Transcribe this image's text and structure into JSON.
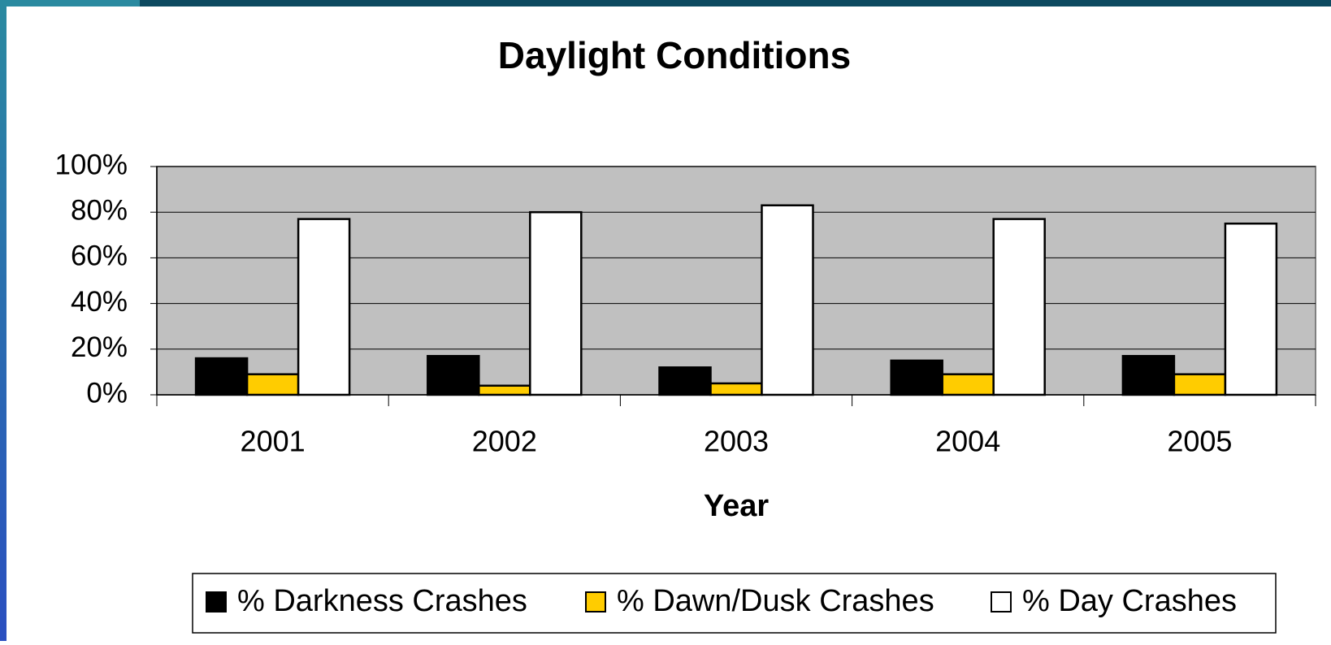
{
  "chart_data": {
    "type": "bar",
    "title": "Daylight Conditions",
    "x_label": "Year",
    "categories": [
      "2001",
      "2002",
      "2003",
      "2004",
      "2005"
    ],
    "series": [
      {
        "name": "% Darkness Crashes",
        "color": "#000000",
        "values": [
          16,
          17,
          12,
          15,
          17
        ]
      },
      {
        "name": "% Dawn/Dusk Crashes",
        "color": "#ffcc00",
        "values": [
          9,
          4,
          5,
          9,
          9
        ]
      },
      {
        "name": "% Day Crashes",
        "color": "#ffffff",
        "values": [
          77,
          80,
          83,
          77,
          75
        ]
      }
    ],
    "ylim": [
      0,
      100
    ],
    "yticks": [
      {
        "value": 0,
        "label": "0%"
      },
      {
        "value": 20,
        "label": "20%"
      },
      {
        "value": 40,
        "label": "40%"
      },
      {
        "value": 60,
        "label": "60%"
      },
      {
        "value": 80,
        "label": "80%"
      },
      {
        "value": 100,
        "label": "100%"
      }
    ],
    "grid": true,
    "plot_background": "#c0c0c0",
    "legend": "bottom"
  }
}
